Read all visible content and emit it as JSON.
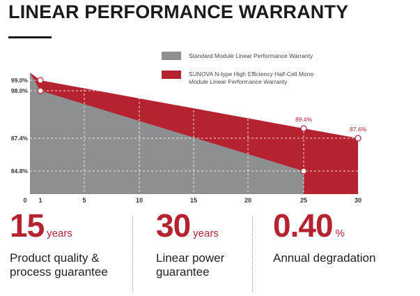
{
  "title": "LINEAR PERFORMANCE WARRANTY",
  "chart_data": {
    "type": "area",
    "title": "LINEAR PERFORMANCE WARRANTY",
    "x_ticks": [
      "0",
      "1",
      "5",
      "10",
      "15",
      "20",
      "25",
      "30"
    ],
    "y_ticks": [
      "99.0%",
      "98.0%",
      "87.4%",
      "84.8%"
    ],
    "xlim": [
      0,
      30
    ],
    "series": [
      {
        "name": "Standard Module Linear Performance Warranty",
        "color": "#8e8f91",
        "x": [
          0,
          1,
          25
        ],
        "values": [
          100,
          98.0,
          84.8
        ]
      },
      {
        "name": "SUNOVA N-type High Efficiency Half-Cell Mono Module Linear Performance Warranty",
        "color": "#b52230",
        "x": [
          0,
          1,
          25,
          30
        ],
        "values": [
          100,
          99.0,
          89.4,
          87.4
        ]
      }
    ],
    "annotations": [
      {
        "text": "89.4%",
        "x": 25,
        "y": 89.4
      },
      {
        "text": "87.4%",
        "x": 30,
        "y": 87.4
      }
    ]
  },
  "legend": {
    "standard": "Standard Module Linear Performance Warranty",
    "sunova_line1": "SUNOVA N-type High Efficiency Half-Cell Mono",
    "sunova_line2": "Module Linear Performance Warranty"
  },
  "stats": [
    {
      "value": "15",
      "unit": "years",
      "line1": "Product quality &",
      "line2": "process guarantee"
    },
    {
      "value": "30",
      "unit": "years",
      "line1": "Linear power",
      "line2": "guarantee"
    },
    {
      "value": "0.40",
      "unit": "%",
      "line1": "Annual degradation",
      "line2": ""
    }
  ]
}
